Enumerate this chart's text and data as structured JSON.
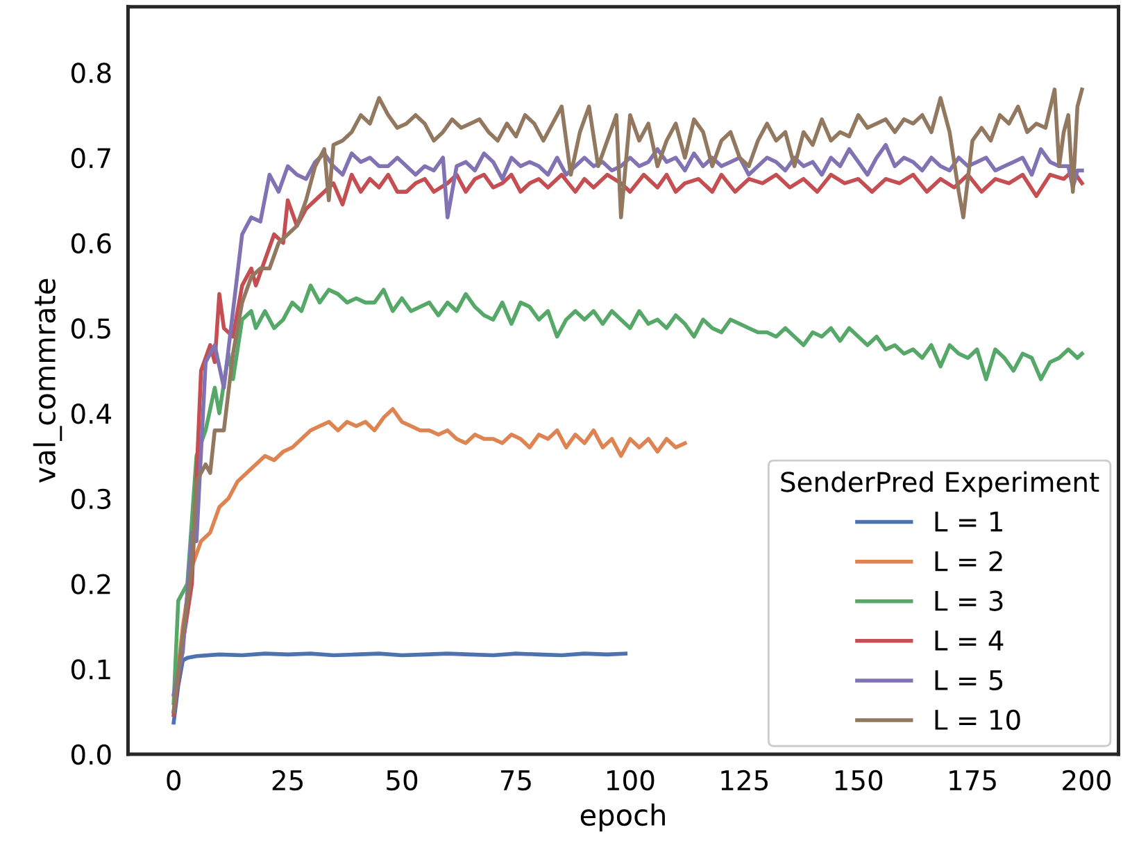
{
  "chart_data": {
    "type": "line",
    "xlabel": "epoch",
    "ylabel": "val_commrate",
    "legend_title": "SenderPred Experiment",
    "legend": "bottom right",
    "grid": false,
    "marker": "none",
    "line_style": "solid",
    "xlim": [
      -10,
      207
    ],
    "xticks": [
      0,
      25,
      50,
      75,
      100,
      125,
      150,
      175,
      200
    ],
    "ylim": [
      0,
      0.877
    ],
    "yticks": [
      {
        "value": 0,
        "label": "0.0"
      },
      0.1,
      0.2,
      0.3,
      0.4,
      0.5,
      0.6,
      0.7,
      0.8
    ],
    "series": [
      {
        "name": "L = 1",
        "color": "#4c72b0",
        "x": [
          0,
          1,
          2,
          3,
          5,
          10,
          15,
          20,
          25,
          30,
          35,
          40,
          45,
          50,
          55,
          60,
          65,
          70,
          75,
          80,
          85,
          90,
          95,
          99
        ],
        "values": [
          0.037,
          0.08,
          0.11,
          0.113,
          0.115,
          0.117,
          0.116,
          0.118,
          0.117,
          0.118,
          0.116,
          0.117,
          0.118,
          0.116,
          0.117,
          0.118,
          0.117,
          0.116,
          0.118,
          0.117,
          0.116,
          0.118,
          0.117,
          0.118
        ]
      },
      {
        "name": "L = 2",
        "color": "#dd8452",
        "x": [
          0,
          2,
          4,
          6,
          8,
          10,
          12,
          14,
          16,
          18,
          20,
          22,
          24,
          26,
          28,
          30,
          32,
          34,
          36,
          38,
          40,
          42,
          44,
          46,
          48,
          50,
          52,
          54,
          56,
          58,
          60,
          62,
          64,
          66,
          68,
          70,
          72,
          74,
          76,
          78,
          80,
          82,
          84,
          86,
          88,
          90,
          92,
          94,
          96,
          98,
          100,
          102,
          104,
          106,
          108,
          110,
          112
        ],
        "values": [
          0.05,
          0.15,
          0.22,
          0.25,
          0.26,
          0.29,
          0.3,
          0.32,
          0.33,
          0.34,
          0.35,
          0.345,
          0.355,
          0.36,
          0.37,
          0.38,
          0.385,
          0.39,
          0.38,
          0.39,
          0.385,
          0.39,
          0.38,
          0.395,
          0.405,
          0.39,
          0.385,
          0.38,
          0.38,
          0.375,
          0.38,
          0.37,
          0.365,
          0.375,
          0.37,
          0.37,
          0.365,
          0.375,
          0.37,
          0.36,
          0.375,
          0.37,
          0.38,
          0.36,
          0.375,
          0.365,
          0.38,
          0.36,
          0.37,
          0.35,
          0.37,
          0.36,
          0.37,
          0.355,
          0.37,
          0.36,
          0.365
        ]
      },
      {
        "name": "L = 3",
        "color": "#55a868",
        "x": [
          0,
          1,
          3,
          5,
          7,
          9,
          10,
          12,
          13,
          15,
          17,
          18,
          20,
          22,
          24,
          26,
          28,
          30,
          32,
          34,
          36,
          38,
          40,
          42,
          44,
          46,
          48,
          50,
          52,
          54,
          56,
          58,
          60,
          62,
          64,
          66,
          68,
          70,
          72,
          74,
          76,
          78,
          80,
          82,
          84,
          86,
          88,
          90,
          92,
          94,
          96,
          98,
          100,
          102,
          104,
          106,
          108,
          110,
          112,
          114,
          116,
          118,
          120,
          122,
          124,
          126,
          128,
          130,
          132,
          134,
          136,
          138,
          140,
          142,
          144,
          146,
          148,
          150,
          152,
          154,
          156,
          158,
          160,
          162,
          164,
          166,
          168,
          170,
          172,
          174,
          176,
          178,
          180,
          182,
          184,
          186,
          188,
          190,
          192,
          194,
          196,
          198,
          199
        ],
        "values": [
          0.06,
          0.18,
          0.2,
          0.35,
          0.38,
          0.43,
          0.4,
          0.47,
          0.44,
          0.51,
          0.52,
          0.5,
          0.52,
          0.5,
          0.51,
          0.53,
          0.52,
          0.55,
          0.53,
          0.545,
          0.54,
          0.53,
          0.535,
          0.53,
          0.53,
          0.545,
          0.52,
          0.535,
          0.52,
          0.525,
          0.53,
          0.515,
          0.53,
          0.52,
          0.54,
          0.525,
          0.515,
          0.51,
          0.53,
          0.505,
          0.53,
          0.525,
          0.51,
          0.52,
          0.49,
          0.51,
          0.52,
          0.51,
          0.52,
          0.505,
          0.52,
          0.51,
          0.5,
          0.52,
          0.505,
          0.51,
          0.5,
          0.515,
          0.505,
          0.49,
          0.51,
          0.5,
          0.495,
          0.51,
          0.505,
          0.5,
          0.495,
          0.495,
          0.49,
          0.5,
          0.49,
          0.48,
          0.495,
          0.49,
          0.5,
          0.485,
          0.5,
          0.49,
          0.48,
          0.49,
          0.475,
          0.48,
          0.47,
          0.475,
          0.465,
          0.48,
          0.455,
          0.48,
          0.47,
          0.465,
          0.475,
          0.44,
          0.475,
          0.465,
          0.45,
          0.47,
          0.465,
          0.44,
          0.46,
          0.465,
          0.475,
          0.465,
          0.47
        ]
      },
      {
        "name": "L = 4",
        "color": "#c44e52",
        "x": [
          0,
          2,
          4,
          6,
          8,
          9,
          10,
          11,
          13,
          15,
          17,
          18,
          20,
          22,
          24,
          25,
          27,
          29,
          31,
          33,
          35,
          37,
          39,
          41,
          43,
          45,
          47,
          49,
          51,
          53,
          55,
          57,
          60,
          62,
          64,
          66,
          68,
          70,
          72,
          74,
          76,
          78,
          80,
          82,
          85,
          88,
          90,
          92,
          95,
          98,
          100,
          103,
          106,
          108,
          110,
          112,
          115,
          118,
          120,
          123,
          126,
          129,
          132,
          135,
          138,
          141,
          144,
          147,
          150,
          153,
          156,
          159,
          162,
          165,
          168,
          171,
          174,
          177,
          180,
          183,
          186,
          189,
          192,
          195,
          197,
          199
        ],
        "values": [
          0.046,
          0.13,
          0.2,
          0.45,
          0.48,
          0.46,
          0.54,
          0.5,
          0.49,
          0.55,
          0.57,
          0.55,
          0.58,
          0.61,
          0.6,
          0.65,
          0.62,
          0.64,
          0.65,
          0.66,
          0.67,
          0.645,
          0.68,
          0.66,
          0.675,
          0.665,
          0.68,
          0.66,
          0.66,
          0.67,
          0.675,
          0.66,
          0.67,
          0.68,
          0.66,
          0.675,
          0.68,
          0.665,
          0.67,
          0.68,
          0.66,
          0.67,
          0.675,
          0.665,
          0.68,
          0.66,
          0.675,
          0.665,
          0.68,
          0.67,
          0.66,
          0.68,
          0.665,
          0.68,
          0.66,
          0.67,
          0.675,
          0.66,
          0.68,
          0.66,
          0.675,
          0.67,
          0.68,
          0.665,
          0.675,
          0.66,
          0.68,
          0.67,
          0.675,
          0.66,
          0.675,
          0.67,
          0.68,
          0.66,
          0.675,
          0.665,
          0.68,
          0.66,
          0.675,
          0.67,
          0.68,
          0.655,
          0.68,
          0.675,
          0.685,
          0.67
        ]
      },
      {
        "name": "L = 5",
        "color": "#8172b3",
        "x": [
          0,
          2,
          4,
          5,
          7,
          9,
          11,
          13,
          15,
          17,
          19,
          21,
          23,
          25,
          27,
          29,
          31,
          33,
          35,
          37,
          39,
          41,
          43,
          45,
          47,
          49,
          51,
          53,
          55,
          57,
          59,
          60,
          62,
          64,
          66,
          68,
          70,
          72,
          74,
          76,
          78,
          80,
          82,
          84,
          86,
          88,
          90,
          92,
          94,
          96,
          98,
          100,
          102,
          104,
          106,
          108,
          110,
          112,
          114,
          116,
          118,
          120,
          122,
          124,
          126,
          128,
          130,
          132,
          134,
          136,
          138,
          140,
          142,
          144,
          146,
          148,
          150,
          152,
          154,
          156,
          158,
          160,
          162,
          164,
          166,
          168,
          170,
          172,
          174,
          176,
          178,
          180,
          182,
          184,
          186,
          188,
          190,
          192,
          194,
          196,
          197,
          198,
          199
        ],
        "values": [
          0.07,
          0.12,
          0.26,
          0.25,
          0.46,
          0.48,
          0.43,
          0.52,
          0.61,
          0.63,
          0.625,
          0.68,
          0.66,
          0.69,
          0.68,
          0.675,
          0.695,
          0.705,
          0.69,
          0.68,
          0.705,
          0.695,
          0.7,
          0.69,
          0.69,
          0.7,
          0.69,
          0.68,
          0.69,
          0.685,
          0.7,
          0.63,
          0.69,
          0.695,
          0.685,
          0.705,
          0.695,
          0.675,
          0.7,
          0.69,
          0.695,
          0.69,
          0.68,
          0.7,
          0.68,
          0.69,
          0.7,
          0.69,
          0.695,
          0.685,
          0.69,
          0.7,
          0.69,
          0.695,
          0.71,
          0.695,
          0.7,
          0.685,
          0.705,
          0.69,
          0.7,
          0.69,
          0.695,
          0.7,
          0.68,
          0.69,
          0.7,
          0.695,
          0.685,
          0.7,
          0.69,
          0.695,
          0.68,
          0.7,
          0.69,
          0.71,
          0.695,
          0.68,
          0.7,
          0.715,
          0.69,
          0.7,
          0.695,
          0.685,
          0.7,
          0.69,
          0.685,
          0.7,
          0.69,
          0.695,
          0.7,
          0.685,
          0.69,
          0.695,
          0.7,
          0.68,
          0.71,
          0.695,
          0.69,
          0.69,
          0.665,
          0.685,
          0.685
        ]
      },
      {
        "name": "L = 10",
        "color": "#937860",
        "x": [
          0,
          2,
          4,
          5,
          7,
          8,
          9,
          11,
          13,
          15,
          17,
          19,
          21,
          23,
          25,
          27,
          29,
          31,
          33,
          34,
          35,
          37,
          39,
          41,
          43,
          45,
          47,
          49,
          51,
          53,
          55,
          57,
          59,
          61,
          63,
          65,
          67,
          69,
          71,
          73,
          75,
          77,
          79,
          81,
          83,
          85,
          87,
          89,
          91,
          93,
          95,
          97,
          98,
          100,
          102,
          104,
          106,
          108,
          110,
          112,
          114,
          116,
          118,
          120,
          122,
          124,
          126,
          128,
          130,
          132,
          134,
          136,
          138,
          140,
          142,
          144,
          146,
          148,
          150,
          152,
          154,
          156,
          158,
          160,
          162,
          164,
          166,
          168,
          170,
          172,
          173,
          175,
          177,
          179,
          181,
          183,
          185,
          187,
          189,
          191,
          193,
          194,
          195,
          196,
          197,
          198,
          199
        ],
        "values": [
          0.05,
          0.14,
          0.22,
          0.32,
          0.34,
          0.33,
          0.38,
          0.38,
          0.47,
          0.53,
          0.56,
          0.57,
          0.57,
          0.6,
          0.61,
          0.62,
          0.65,
          0.69,
          0.71,
          0.65,
          0.715,
          0.72,
          0.73,
          0.75,
          0.74,
          0.77,
          0.75,
          0.735,
          0.74,
          0.75,
          0.74,
          0.72,
          0.73,
          0.745,
          0.735,
          0.74,
          0.745,
          0.73,
          0.72,
          0.74,
          0.725,
          0.75,
          0.74,
          0.72,
          0.74,
          0.76,
          0.68,
          0.73,
          0.76,
          0.69,
          0.72,
          0.75,
          0.63,
          0.75,
          0.72,
          0.74,
          0.69,
          0.72,
          0.74,
          0.7,
          0.745,
          0.73,
          0.69,
          0.72,
          0.73,
          0.7,
          0.69,
          0.72,
          0.74,
          0.72,
          0.73,
          0.69,
          0.73,
          0.715,
          0.745,
          0.72,
          0.73,
          0.725,
          0.75,
          0.735,
          0.74,
          0.745,
          0.73,
          0.745,
          0.74,
          0.75,
          0.73,
          0.77,
          0.73,
          0.66,
          0.63,
          0.72,
          0.735,
          0.72,
          0.75,
          0.74,
          0.76,
          0.73,
          0.74,
          0.735,
          0.78,
          0.69,
          0.73,
          0.75,
          0.66,
          0.76,
          0.78
        ]
      }
    ]
  }
}
